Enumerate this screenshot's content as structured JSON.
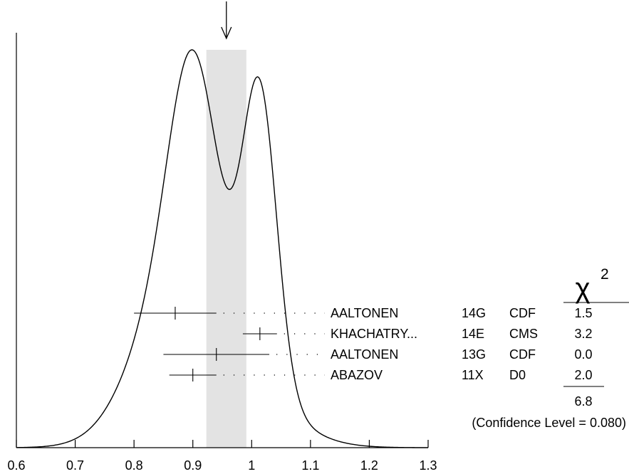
{
  "chart_data": {
    "type": "ideogram",
    "xlim": [
      0.6,
      1.3
    ],
    "x_ticks": [
      "0.6",
      "0.7",
      "0.8",
      "0.9",
      "1",
      "1.1",
      "1.2",
      "1.3"
    ],
    "weighted_average": 0.957,
    "scale_band": [
      0.923,
      0.991
    ],
    "measurements": [
      {
        "author": "AALTONEN",
        "year": "14G",
        "experiment": "CDF",
        "value": 0.87,
        "low": 0.8,
        "high": 0.94,
        "chi2": "1.5"
      },
      {
        "author": "KHACHATRY...",
        "year": "14E",
        "experiment": "CMS",
        "value": 1.014,
        "low": 0.985,
        "high": 1.043,
        "chi2": "3.2"
      },
      {
        "author": "AALTONEN",
        "year": "13G",
        "experiment": "CDF",
        "value": 0.94,
        "low": 0.85,
        "high": 1.03,
        "chi2": "0.0"
      },
      {
        "author": "ABAZOV",
        "year": "11X",
        "experiment": "D0",
        "value": 0.9,
        "low": 0.86,
        "high": 0.94,
        "chi2": "2.0"
      }
    ],
    "chi2_header_symbol": "χ",
    "chi2_header_exponent": "2",
    "chi2_total": "6.8",
    "confidence_level_text": "(Confidence Level = 0.080)"
  }
}
